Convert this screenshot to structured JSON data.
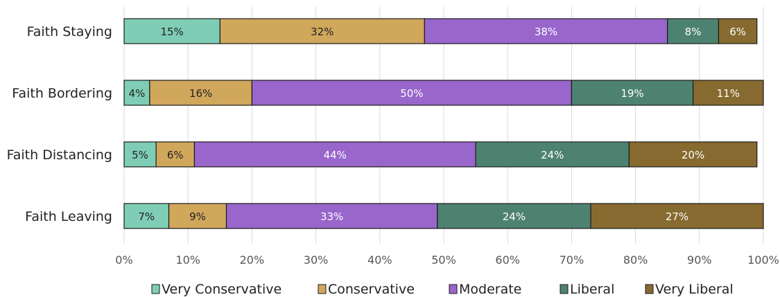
{
  "chart_data": {
    "type": "bar",
    "orientation": "horizontal",
    "stacked": true,
    "categories": [
      "Faith Staying",
      "Faith Bordering",
      "Faith Distancing",
      "Faith Leaving"
    ],
    "series": [
      {
        "name": "Very Conservative",
        "color": "#7fcdb5",
        "label_color": "#222222",
        "values": [
          15,
          4,
          5,
          7
        ]
      },
      {
        "name": "Conservative",
        "color": "#d1a75c",
        "label_color": "#222222",
        "values": [
          32,
          16,
          6,
          9
        ]
      },
      {
        "name": "Moderate",
        "color": "#9966cc",
        "label_color": "#ffffff",
        "values": [
          38,
          50,
          44,
          33
        ]
      },
      {
        "name": "Liberal",
        "color": "#4e8270",
        "label_color": "#ffffff",
        "values": [
          8,
          19,
          24,
          24
        ]
      },
      {
        "name": "Very Liberal",
        "color": "#876a30",
        "label_color": "#ffffff",
        "values": [
          6,
          11,
          20,
          27
        ]
      }
    ],
    "xlim": [
      0,
      100
    ],
    "x_ticks": [
      "0%",
      "10%",
      "20%",
      "30%",
      "40%",
      "50%",
      "60%",
      "70%",
      "80%",
      "90%",
      "100%"
    ],
    "value_suffix": "%",
    "grid": "vertical",
    "legend_position": "bottom"
  }
}
